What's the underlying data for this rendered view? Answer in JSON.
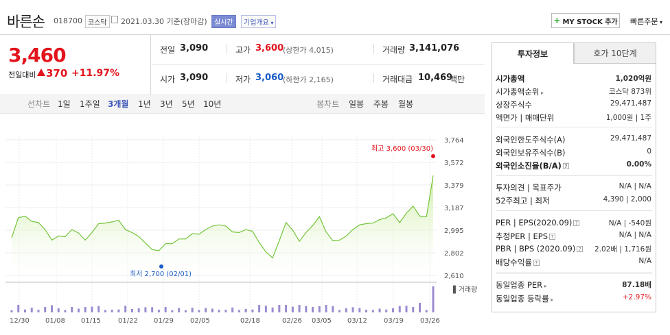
{
  "header": {
    "name": "바른손",
    "code": "018700",
    "market_badge": "코스닥",
    "date_info": "2021.03.30 기준(장마감)",
    "realtime_badge": "실시간",
    "corp_overview": "기업개요",
    "mystock_button": "MY STOCK 추가",
    "quick_order": "빠른주문"
  },
  "price": {
    "current": "3,460",
    "diff_label": "전일대비",
    "diff_value": "370",
    "diff_pct": "+11.97%"
  },
  "stats": {
    "prev_label": "전일",
    "prev_value": "3,090",
    "high_label": "고가",
    "high_value": "3,600",
    "high_sub": "(상한가 4,015)",
    "volume_label": "거래량",
    "volume_value": "3,141,076",
    "open_label": "시가",
    "open_value": "3,090",
    "low_label": "저가",
    "low_value": "3,060",
    "low_sub": "(하한가 2,165)",
    "amount_label": "거래대금",
    "amount_value": "10,469",
    "amount_unit": "백만"
  },
  "periods": {
    "line_label": "선차트",
    "line_items": [
      "1일",
      "1주일",
      "3개월",
      "1년",
      "3년",
      "5년",
      "10년"
    ],
    "selected": "3개월",
    "candle_label": "봉차트",
    "candle_items": [
      "일봉",
      "주봉",
      "월봉"
    ]
  },
  "chart_data": {
    "type": "line",
    "title": "",
    "ylim": [
      2610,
      3764
    ],
    "y_ticks": [
      "3,764",
      "3,572",
      "3,379",
      "3,187",
      "2,995",
      "2,802",
      "2,610"
    ],
    "x_ticks": [
      "12/30",
      "01/08",
      "01/15",
      "01/22",
      "01/29",
      "02/05",
      "02/18",
      "02/26",
      "03/05",
      "03/12",
      "03/19",
      "03/26"
    ],
    "high_annotation": "최고 3,600 (03/30)",
    "low_annotation": "최저 2,700 (02/01)",
    "volume_label": "거래량",
    "values": [
      2930,
      3100,
      3115,
      3070,
      3060,
      3000,
      2910,
      2945,
      2940,
      3000,
      2970,
      2910,
      2975,
      3050,
      3055,
      3065,
      3080,
      3000,
      2975,
      2940,
      2885,
      2830,
      2820,
      2880,
      2880,
      2920,
      2920,
      2965,
      2960,
      3000,
      3030,
      3040,
      3030,
      2980,
      2975,
      3000,
      2985,
      2890,
      2810,
      2760,
      2905,
      3060,
      2995,
      2900,
      2975,
      3035,
      3110,
      2980,
      2905,
      2910,
      2945,
      3000,
      3040,
      3050,
      3055,
      3085,
      3100,
      3135,
      3060,
      3140,
      3200,
      3115,
      3110,
      3460
    ]
  },
  "right_panel": {
    "tab_invest": "투자정보",
    "tab_quote": "호가 10단계",
    "rows1": [
      {
        "label": "시가총액",
        "value": "1,020억원"
      },
      {
        "label": "시가총액순위",
        "value": "코스닥 873위"
      },
      {
        "label": "상장주식수",
        "value": "29,471,487"
      },
      {
        "label": "액면가 | 매매단위",
        "value": "1,000원 | 1주"
      }
    ],
    "rows2": [
      {
        "label": "외국인한도주식수(A)",
        "value": "29,471,487"
      },
      {
        "label": "외국인보유주식수(B)",
        "value": "0"
      },
      {
        "label": "외국인소진율(B/A)",
        "value": "0.00%"
      }
    ],
    "rows3": [
      {
        "label": "투자의견 | 목표주가",
        "value": "N/A | N/A"
      },
      {
        "label": "52주최고 | 최저",
        "value": "4,390 | 2,000"
      }
    ],
    "rows4": [
      {
        "label": "PER | EPS(2020.09)",
        "value": "N/A | -540원"
      },
      {
        "label": "추정PER | EPS",
        "value": "N/A | N/A"
      },
      {
        "label": "PBR | BPS (2020.09)",
        "value": "2.02배 | 1,716원"
      },
      {
        "label": "배당수익률",
        "value": "N/A"
      }
    ],
    "rows5": [
      {
        "label": "동일업종 PER",
        "value": "87.18배"
      },
      {
        "label": "동일업종 등락률",
        "value": "+2.97%"
      }
    ]
  }
}
